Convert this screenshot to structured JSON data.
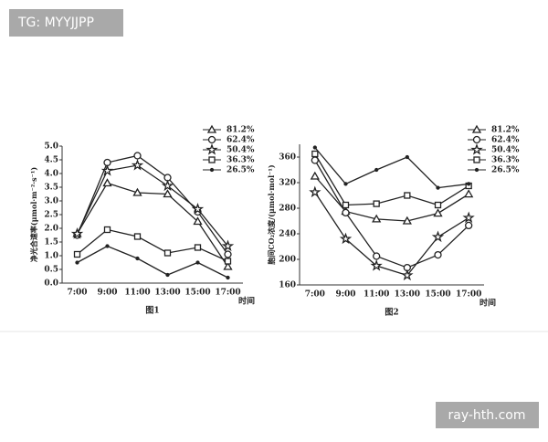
{
  "watermarks": [
    "TG: MYYJJPP",
    "ray-hth.com"
  ],
  "chart_data": [
    {
      "type": "line",
      "ylabel": "净光合速率(μmol·m⁻²·s⁻¹)",
      "xlabel": "时间",
      "caption": "图1",
      "categories": [
        "7:00",
        "9:00",
        "11:00",
        "13:00",
        "15:00",
        "17:00"
      ],
      "ylim": [
        0,
        5
      ],
      "yticks": [
        {
          "value": 0,
          "label": "0.0"
        },
        0.5,
        {
          "value": 1,
          "label": "1.0"
        },
        1.5,
        {
          "value": 2,
          "label": "2.0"
        },
        2.5,
        {
          "value": 3,
          "label": "3.0"
        },
        3.5,
        {
          "value": 4,
          "label": "4.0"
        },
        4.5,
        {
          "value": 5,
          "label": "5.0"
        }
      ],
      "series": [
        {
          "name": "81.2%",
          "color": "#222222",
          "marker": "triangle",
          "values": [
            1.8,
            3.65,
            3.3,
            3.25,
            2.25,
            0.6
          ]
        },
        {
          "name": "62.4%",
          "color": "#222222",
          "marker": "circle",
          "values": [
            1.75,
            4.4,
            4.65,
            3.85,
            2.6,
            1.05
          ]
        },
        {
          "name": "50.4%",
          "color": "#222222",
          "marker": "star",
          "values": [
            1.8,
            4.1,
            4.3,
            3.55,
            2.7,
            1.35
          ]
        },
        {
          "name": "36.3%",
          "color": "#222222",
          "marker": "square",
          "values": [
            1.05,
            1.95,
            1.7,
            1.1,
            1.3,
            0.8
          ]
        },
        {
          "name": "26.5%",
          "color": "#222222",
          "marker": "dot",
          "values": [
            0.75,
            1.35,
            0.9,
            0.3,
            0.75,
            0.2
          ]
        }
      ]
    },
    {
      "type": "line",
      "ylabel": "胞间CO₂浓度/(μmol·mol⁻¹)",
      "xlabel": "时间",
      "caption": "图2",
      "categories": [
        "7:00",
        "9:00",
        "11:00",
        "13:00",
        "15:00",
        "17:00"
      ],
      "ylim": [
        160,
        380
      ],
      "yticks": [
        160,
        200,
        240,
        280,
        320,
        360
      ],
      "series": [
        {
          "name": "81.2%",
          "color": "#222222",
          "marker": "triangle",
          "values": [
            330,
            275,
            263,
            260,
            272,
            302
          ]
        },
        {
          "name": "62.4%",
          "color": "#222222",
          "marker": "circle",
          "values": [
            355,
            273,
            205,
            187,
            207,
            253
          ]
        },
        {
          "name": "50.4%",
          "color": "#222222",
          "marker": "star",
          "values": [
            305,
            232,
            190,
            175,
            235,
            265
          ]
        },
        {
          "name": "36.3%",
          "color": "#222222",
          "marker": "square",
          "values": [
            365,
            285,
            287,
            300,
            285,
            315
          ]
        },
        {
          "name": "26.5%",
          "color": "#222222",
          "marker": "dot",
          "values": [
            375,
            318,
            340,
            360,
            312,
            318
          ]
        }
      ]
    }
  ]
}
